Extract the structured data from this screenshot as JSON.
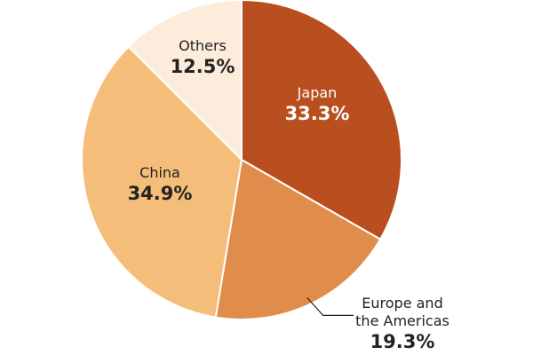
{
  "chart_data": {
    "type": "pie",
    "categories": [
      "Japan",
      "Europe and the Americas",
      "China",
      "Others"
    ],
    "values": [
      33.3,
      19.3,
      34.9,
      12.5
    ],
    "value_labels": [
      "33.3%",
      "19.3%",
      "34.9%",
      "12.5%"
    ],
    "colors": [
      "#b94e1f",
      "#e08c4a",
      "#f5bd7a",
      "#fdebdb"
    ]
  }
}
